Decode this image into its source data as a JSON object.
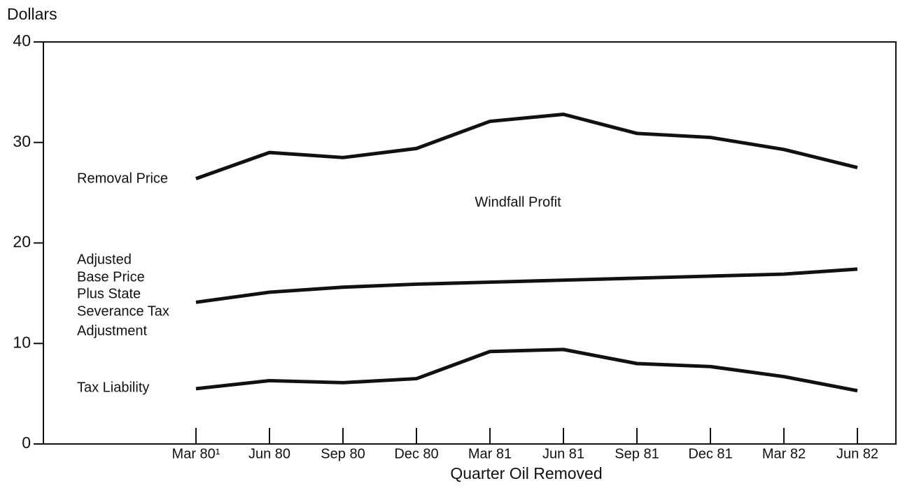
{
  "chart_data": {
    "type": "line",
    "y_label": "Dollars",
    "x_label": "Quarter Oil Removed",
    "annotation": "Windfall Profit",
    "categories": [
      "Mar 80¹",
      "Jun 80",
      "Sep 80",
      "Dec 80",
      "Mar 81",
      "Jun 81",
      "Sep 81",
      "Dec 81",
      "Mar 82",
      "Jun 82"
    ],
    "series": [
      {
        "name": [
          "Removal Price"
        ],
        "color": "#111111",
        "values": [
          26.4,
          29.0,
          28.5,
          29.4,
          32.1,
          32.8,
          30.9,
          30.5,
          29.3,
          27.5
        ]
      },
      {
        "name": [
          "Adjusted",
          "Base Price",
          "Plus State",
          "Severance Tax",
          "Adjustment"
        ],
        "color": "#111111",
        "values": [
          14.1,
          15.1,
          15.6,
          15.9,
          16.1,
          16.3,
          16.5,
          16.7,
          16.9,
          17.4
        ]
      },
      {
        "name": [
          "Tax Liability"
        ],
        "color": "#111111",
        "values": [
          5.5,
          6.3,
          6.1,
          6.5,
          9.2,
          9.4,
          8.0,
          7.7,
          6.7,
          5.3
        ]
      }
    ],
    "ylim": [
      0,
      40
    ],
    "yticks": [
      0,
      10,
      20,
      30,
      40
    ]
  }
}
